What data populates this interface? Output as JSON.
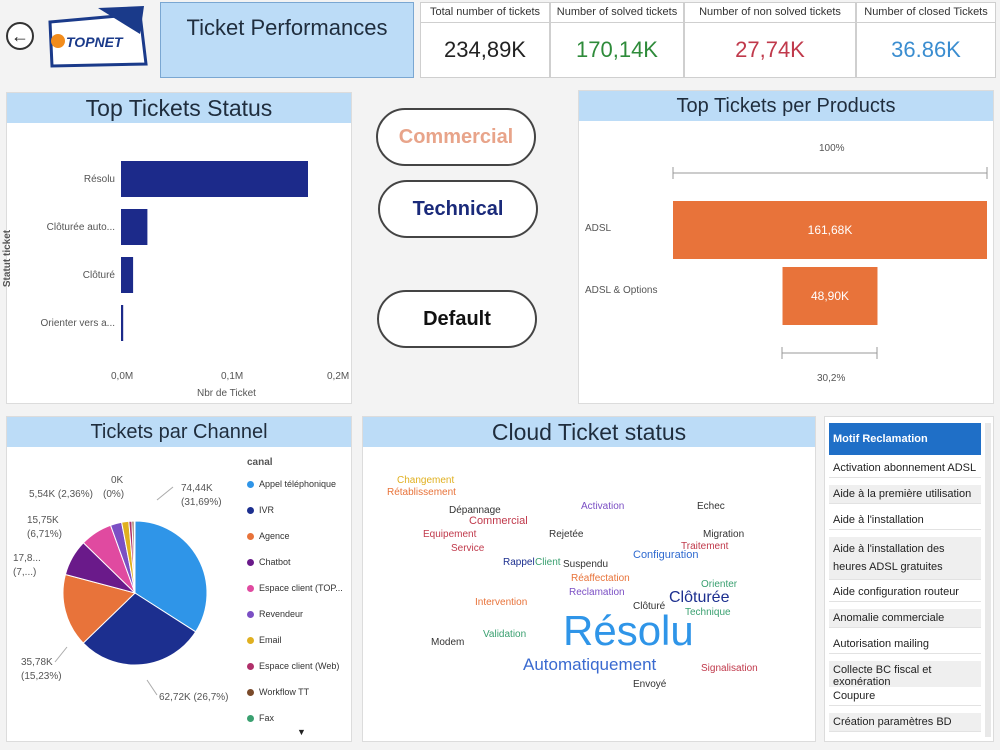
{
  "header": {
    "logo_text": "TOPNET",
    "title": "Ticket  Performances"
  },
  "kpis": [
    {
      "label": "Total number of tickets",
      "value": "234,89K",
      "color": "#222222"
    },
    {
      "label": "Number of solved tickets",
      "value": "170,14K",
      "color": "#2e8b3a"
    },
    {
      "label": "Number of non solved tickets",
      "value": "27,74K",
      "color": "#c0394b"
    },
    {
      "label": "Number of closed Tickets",
      "value": "36.86K",
      "color": "#3a8dd0"
    }
  ],
  "buttons": {
    "commercial": "Commercial",
    "technical": "Technical",
    "default": "Default"
  },
  "status_chart": {
    "title": "Top Tickets Status",
    "ylabel": "Statut ticket",
    "xlabel": "Nbr de Ticket",
    "ticks": [
      "0,0M",
      "0,1M",
      "0,2M"
    ]
  },
  "products_chart": {
    "title": "Top Tickets per Products",
    "top_pct": "100%",
    "bottom_pct": "30,2%"
  },
  "channel_chart": {
    "title": "Tickets par Channel",
    "legend_title": "canal",
    "labels": {
      "l1": "74,44K",
      "l1b": "(31,69%)",
      "l2": "62,72K (26,7%)",
      "l3": "35,78K",
      "l3b": "(15,23%)",
      "l4": "17,8...",
      "l4b": "(7,...)",
      "l5": "15,75K",
      "l5b": "(6,71%)",
      "l6": "5,54K (2,36%)",
      "l7": "0K",
      "l7b": "(0%)"
    },
    "legend": [
      "Appel téléphonique",
      "IVR",
      "Agence",
      "Chatbot",
      "Espace client (TOP...",
      "Revendeur",
      "Email",
      "Espace client (Web)",
      "Workflow TT",
      "Fax"
    ]
  },
  "cloud": {
    "title": "Cloud Ticket status",
    "words": {
      "w1": "Résolu",
      "w2": "Automatiquement",
      "w3": "Clôturée",
      "w4": "Clôturé",
      "w5": "Commercial",
      "w6": "Configuration",
      "w7": "Rétablissement",
      "w8": "Migration",
      "w9": "Reclamation",
      "w10": "Client",
      "w11": "Technique",
      "w12": "Equipement",
      "w13": "Rejetée",
      "w14": "Intervention",
      "w15": "Echec",
      "w16": "Activation",
      "w17": "Changement",
      "w18": "Rappel",
      "w19": "Suspendu",
      "w20": "Traitement",
      "w21": "Orienter",
      "w22": "Envoyé",
      "w23": "Modem",
      "w24": "Service",
      "w25": "Validation",
      "w26": "Dépannage",
      "w27": "Réaffectation",
      "w28": "Signalisation"
    }
  },
  "chart_data": [
    {
      "type": "bar",
      "title": "Top Tickets Status",
      "xlabel": "Nbr de Ticket",
      "ylabel": "Statut ticket",
      "categories": [
        "Résolu",
        "Clôturée auto...",
        "Clôturé",
        "Orienter vers a..."
      ],
      "values": [
        0.17,
        0.024,
        0.011,
        0.002
      ],
      "xlim": [
        0,
        0.2
      ]
    },
    {
      "type": "bar",
      "title": "Top Tickets per Products",
      "categories": [
        "ADSL",
        "ADSL & Options"
      ],
      "values": [
        161.68,
        48.9
      ],
      "value_labels": [
        "161,68K",
        "48,90K"
      ],
      "bar_color": "#e8733a"
    },
    {
      "type": "pie",
      "title": "Tickets par Channel",
      "slices": [
        {
          "label": "Appel téléphonique",
          "value": 74.44,
          "color": "#2f95e8"
        },
        {
          "label": "IVR",
          "value": 62.72,
          "color": "#1c2f8f"
        },
        {
          "label": "Agence",
          "value": 35.78,
          "color": "#e8733a"
        },
        {
          "label": "Chatbot",
          "value": 17.8,
          "color": "#6a1a8a"
        },
        {
          "label": "Espace client (TOP...",
          "value": 15.75,
          "color": "#e04aa0"
        },
        {
          "label": "Revendeur",
          "value": 5.54,
          "color": "#7b4fc4"
        },
        {
          "label": "Email",
          "value": 3.5,
          "color": "#e0b020"
        },
        {
          "label": "Espace client (Web)",
          "value": 1.5,
          "color": "#b0306a"
        },
        {
          "label": "Workflow TT",
          "value": 1.0,
          "color": "#7a4a2a"
        },
        {
          "label": "Fax",
          "value": 0.5,
          "color": "#3aa070"
        }
      ]
    }
  ],
  "motif_list": {
    "header": "Motif Reclamation",
    "items": [
      "Activation abonnement ADSL",
      "Aide à la première utilisation",
      "Aide à l'installation",
      "Aide à l'installation des heures ADSL gratuites",
      "Aide configuration routeur",
      "Anomalie commerciale",
      "Autorisation mailing",
      "Collecte BC fiscal et exonération",
      "Coupure",
      "Création paramètres BD"
    ]
  }
}
